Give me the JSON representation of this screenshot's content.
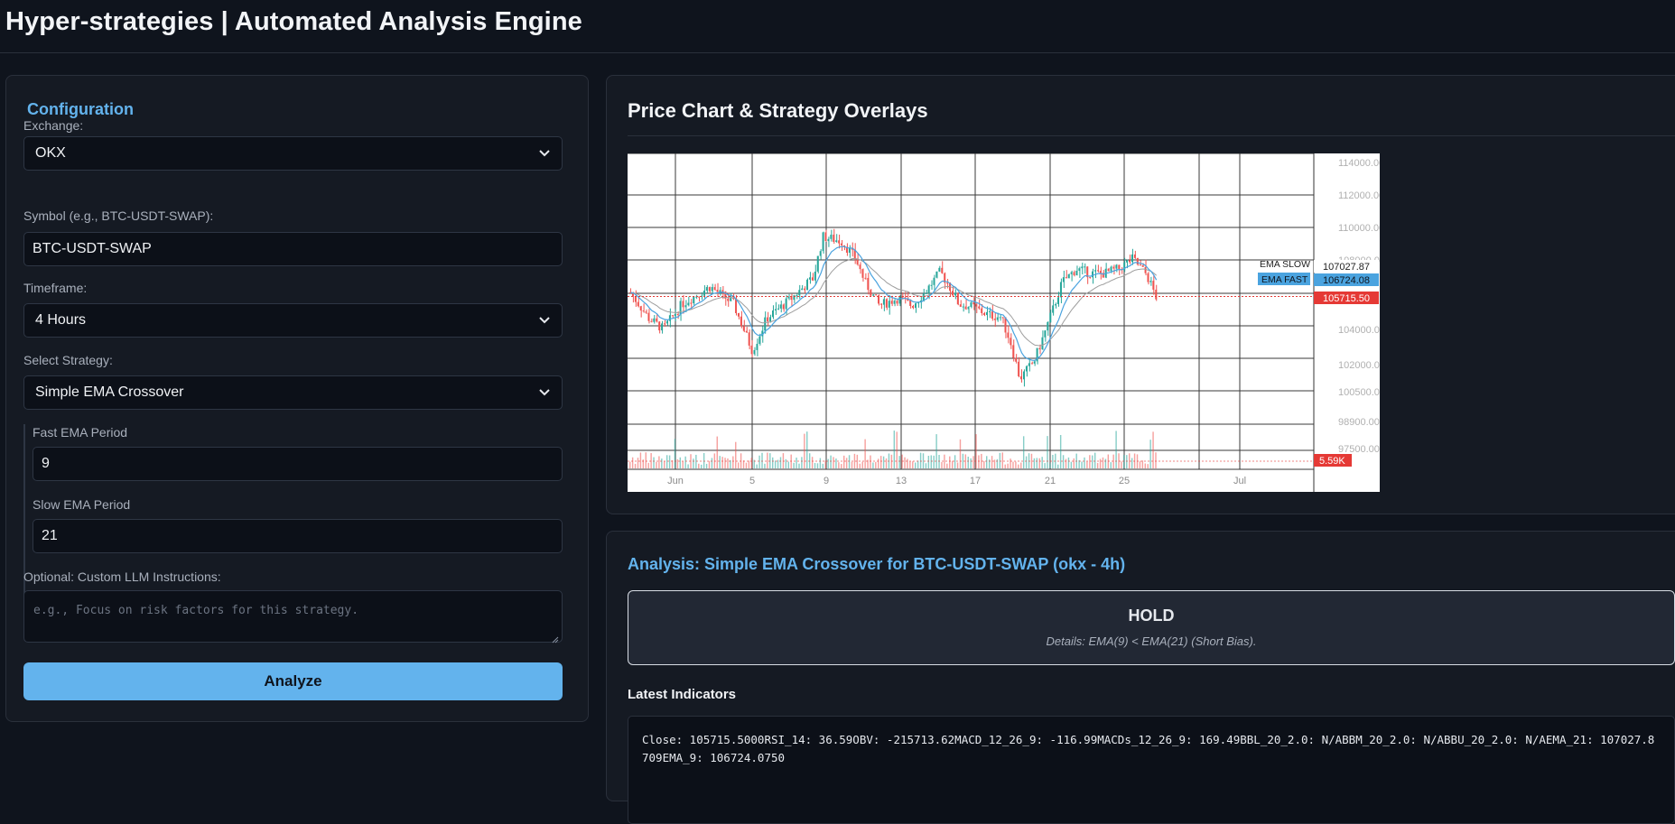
{
  "app": {
    "title": "Hyper-strategies | Automated Analysis Engine"
  },
  "config": {
    "title": "Configuration",
    "exchange": {
      "label": "Exchange:",
      "value": "OKX"
    },
    "symbol": {
      "label": "Symbol (e.g., BTC-USDT-SWAP):",
      "value": "BTC-USDT-SWAP"
    },
    "timeframe": {
      "label": "Timeframe:",
      "value": "4 Hours"
    },
    "strategy": {
      "label": "Select Strategy:",
      "value": "Simple EMA Crossover"
    },
    "fast_ema": {
      "label": "Fast EMA Period",
      "value": "9"
    },
    "slow_ema": {
      "label": "Slow EMA Period",
      "value": "21"
    },
    "llm": {
      "label": "Optional: Custom LLM Instructions:",
      "placeholder": "e.g., Focus on risk factors for this strategy."
    },
    "analyze_label": "Analyze"
  },
  "chart_panel": {
    "title": "Price Chart & Strategy Overlays"
  },
  "chart_data": {
    "type": "candlestick",
    "y_ticks": [
      "114000.00",
      "112000.00",
      "110000.00",
      "108000.00",
      "104000.00",
      "102000.00",
      "100500.00",
      "98900.00",
      "97500.00"
    ],
    "x_ticks": [
      "Jun",
      "5",
      "9",
      "13",
      "17",
      "21",
      "25",
      "Jul"
    ],
    "ylim": [
      96500,
      115000
    ],
    "price_path": [
      [
        0,
        106000
      ],
      [
        4,
        104200
      ],
      [
        7,
        103500
      ],
      [
        11,
        105200
      ],
      [
        17,
        106400
      ],
      [
        22,
        105200
      ],
      [
        26,
        102000
      ],
      [
        29,
        104200
      ],
      [
        34,
        105500
      ],
      [
        39,
        107000
      ],
      [
        41,
        109800
      ],
      [
        45,
        109500
      ],
      [
        48,
        108300
      ],
      [
        50,
        106700
      ],
      [
        53,
        105100
      ],
      [
        57,
        105600
      ],
      [
        60,
        105100
      ],
      [
        63,
        106100
      ],
      [
        66,
        107400
      ],
      [
        68,
        106400
      ],
      [
        70,
        105200
      ],
      [
        73,
        105000
      ],
      [
        76,
        104500
      ],
      [
        79,
        104300
      ],
      [
        81,
        102600
      ],
      [
        83,
        100100
      ],
      [
        86,
        101300
      ],
      [
        88,
        103000
      ],
      [
        90,
        104800
      ],
      [
        92,
        106700
      ],
      [
        95,
        107600
      ],
      [
        98,
        107300
      ],
      [
        101,
        107300
      ],
      [
        104,
        107600
      ],
      [
        107,
        108300
      ],
      [
        110,
        107200
      ],
      [
        112,
        105700
      ]
    ],
    "series": [
      {
        "name": "EMA SLOW",
        "last": "107027.87"
      },
      {
        "name": "EMA FAST",
        "last": "106724.08"
      }
    ],
    "last_price": "105715.50",
    "last_volume": "5.59K",
    "colors": {
      "up": "#26a69a",
      "down": "#ef5350",
      "ema_fast": "#4aa3df",
      "ema_slow": "#9e9e9e",
      "label_fast": "#4aa3df",
      "label_price": "#e53935"
    },
    "grid": true
  },
  "analysis": {
    "title": "Analysis: Simple EMA Crossover for BTC-USDT-SWAP (okx - 4h)",
    "signal": "HOLD",
    "details": "Details: EMA(9) < EMA(21) (Short Bias).",
    "indicators_title": "Latest Indicators",
    "indicators_text": "Close: 105715.5000RSI_14: 36.59OBV: -215713.62MACD_12_26_9: -116.99MACDs_12_26_9: 169.49BBL_20_2.0: N/ABBM_20_2.0: N/ABBU_20_2.0: N/AEMA_21: 107027.8709EMA_9: 106724.0750"
  }
}
